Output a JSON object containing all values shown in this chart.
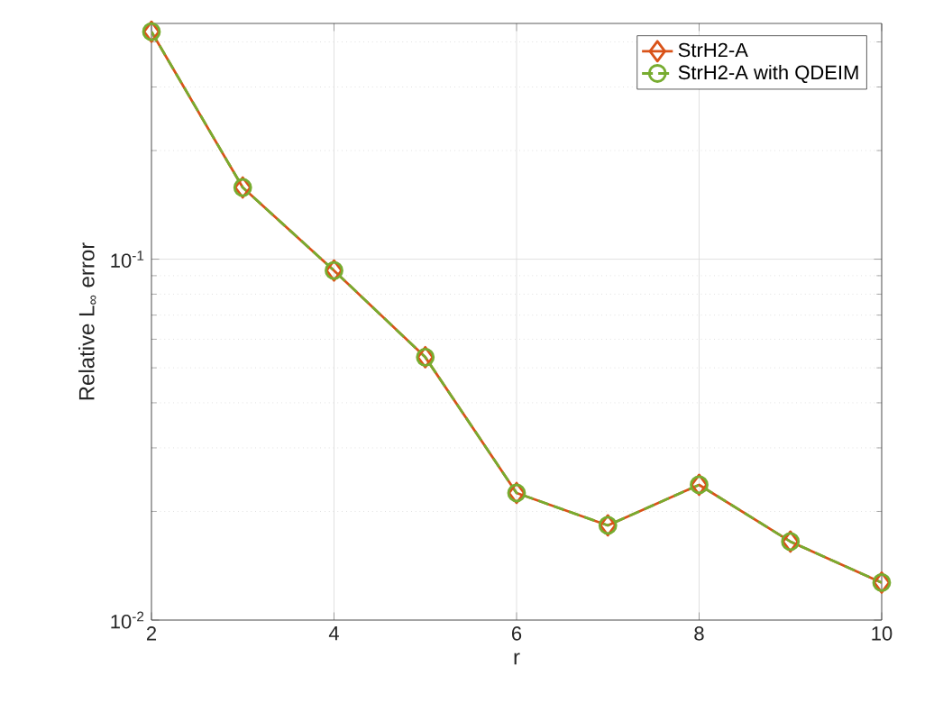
{
  "chart_data": {
    "type": "line",
    "xlabel": "r",
    "ylabel": "Relative L$_{∞}$ error",
    "x": [
      2,
      3,
      4,
      5,
      6,
      7,
      8,
      9,
      10
    ],
    "series": [
      {
        "name": "StrH2-A",
        "color": "#d95319",
        "marker": "diamond",
        "line_style": "solid",
        "values": [
          0.427,
          0.158,
          0.093,
          0.0535,
          0.0225,
          0.0183,
          0.0237,
          0.0165,
          0.0127
        ]
      },
      {
        "name": "StrH2-A with QDEIM",
        "color": "#77ac30",
        "marker": "circle",
        "line_style": "dashed",
        "values": [
          0.427,
          0.158,
          0.093,
          0.0535,
          0.0225,
          0.0183,
          0.0237,
          0.0165,
          0.0127
        ]
      }
    ],
    "xlim": [
      2,
      10
    ],
    "ylim": [
      0.01,
      0.45
    ],
    "xticks": [
      2,
      4,
      6,
      8,
      10
    ],
    "yticks": [
      {
        "value": 0.01,
        "label": "10$^{-2}$"
      },
      {
        "value": 0.1,
        "label": "10$^{-1}$"
      }
    ],
    "log": "y",
    "grid": true,
    "legend": "top right"
  }
}
